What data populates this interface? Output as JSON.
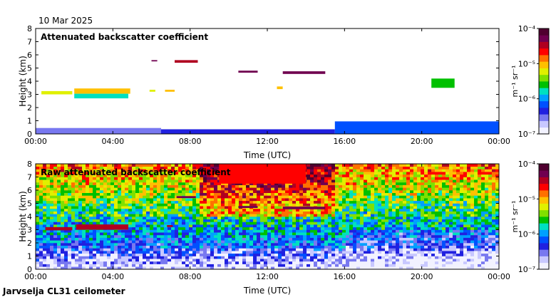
{
  "date": "10 Mar 2025",
  "footer": "Jarvselja CL31 ceilometer",
  "colors": {
    "axis": "#000000",
    "panel_bg": "#ffffff"
  },
  "colormap": [
    "#f2f2ff",
    "#c8c8ff",
    "#7878f0",
    "#2020e0",
    "#0050ff",
    "#00a0ff",
    "#00e0c0",
    "#00c000",
    "#80e000",
    "#e0f000",
    "#ffc000",
    "#ff7000",
    "#ff0000",
    "#b00020",
    "#700050",
    "#500030"
  ],
  "colorbar": {
    "unit_label": "m⁻¹ sr⁻¹",
    "ticks": [
      {
        "exp": -4,
        "label": "10⁻⁴"
      },
      {
        "exp": -5,
        "label": "10⁻⁵"
      },
      {
        "exp": -6,
        "label": "10⁻⁶"
      },
      {
        "exp": -7,
        "label": "10⁻⁷"
      }
    ]
  },
  "chart_data": [
    {
      "type": "heatmap",
      "title": "Attenuated backscatter coefficient",
      "xlabel": "Time (UTC)",
      "ylabel": "Height (km)",
      "xlim": [
        0,
        24
      ],
      "ylim": [
        0,
        8
      ],
      "xticks": [
        {
          "v": 0,
          "label": "00:00"
        },
        {
          "v": 4,
          "label": "04:00"
        },
        {
          "v": 8,
          "label": "08:00"
        },
        {
          "v": 12,
          "label": "12:00"
        },
        {
          "v": 16,
          "label": "16:00"
        },
        {
          "v": 20,
          "label": "20:00"
        },
        {
          "v": 24,
          "label": "00:00"
        }
      ],
      "yticks": [
        0,
        1,
        2,
        3,
        4,
        5,
        6,
        7,
        8
      ],
      "value_scale": "log10",
      "value_range": [
        -7,
        -4
      ],
      "features": [
        {
          "t0": 0.3,
          "t1": 1.9,
          "h0": 3.0,
          "h1": 3.25,
          "level": -5.2
        },
        {
          "t0": 2.0,
          "t1": 4.9,
          "h0": 3.05,
          "h1": 3.45,
          "level": -5.1
        },
        {
          "t0": 2.0,
          "t1": 4.8,
          "h0": 2.7,
          "h1": 3.05,
          "level": -5.8
        },
        {
          "t0": 5.9,
          "t1": 6.2,
          "h0": 3.2,
          "h1": 3.35,
          "level": -5.3
        },
        {
          "t0": 6.7,
          "t1": 7.2,
          "h0": 3.2,
          "h1": 3.35,
          "level": -5.0
        },
        {
          "t0": 6.0,
          "t1": 6.3,
          "h0": 5.5,
          "h1": 5.6,
          "level": -4.3
        },
        {
          "t0": 7.2,
          "t1": 8.4,
          "h0": 5.4,
          "h1": 5.6,
          "level": -4.4
        },
        {
          "t0": 10.5,
          "t1": 11.5,
          "h0": 4.65,
          "h1": 4.8,
          "level": -4.3
        },
        {
          "t0": 12.8,
          "t1": 15.0,
          "h0": 4.55,
          "h1": 4.75,
          "level": -4.3
        },
        {
          "t0": 12.5,
          "t1": 12.8,
          "h0": 3.4,
          "h1": 3.6,
          "level": -5.0
        },
        {
          "t0": 20.5,
          "t1": 21.7,
          "h0": 3.5,
          "h1": 4.2,
          "level": -5.6
        },
        {
          "t0": 0,
          "t1": 6.5,
          "h0": 0.0,
          "h1": 0.45,
          "level": -6.6
        },
        {
          "t0": 6.5,
          "t1": 15.5,
          "h0": 0.0,
          "h1": 0.35,
          "level": -6.4
        },
        {
          "t0": 15.5,
          "t1": 24,
          "h0": 0.0,
          "h1": 0.95,
          "level": -6.2
        }
      ]
    },
    {
      "type": "heatmap",
      "title": "Raw attenuated backscatter coefficient",
      "xlabel": "Time (UTC)",
      "ylabel": "Height (km)",
      "xlim": [
        0,
        24
      ],
      "ylim": [
        0,
        8
      ],
      "xticks": [
        {
          "v": 0,
          "label": "00:00"
        },
        {
          "v": 4,
          "label": "04:00"
        },
        {
          "v": 8,
          "label": "08:00"
        },
        {
          "v": 12,
          "label": "12:00"
        },
        {
          "v": 16,
          "label": "16:00"
        },
        {
          "v": 20,
          "label": "20:00"
        },
        {
          "v": 24,
          "label": "00:00"
        }
      ],
      "yticks": [
        0,
        1,
        2,
        3,
        4,
        5,
        6,
        7,
        8
      ],
      "value_scale": "log10",
      "value_range": [
        -7,
        -4
      ],
      "features": [
        {
          "t0": 0.5,
          "t1": 1.9,
          "h0": 2.95,
          "h1": 3.2,
          "level": -4.4
        },
        {
          "t0": 2.1,
          "t1": 4.8,
          "h0": 3.0,
          "h1": 3.4,
          "level": -4.5
        },
        {
          "t0": 6.8,
          "t1": 7.1,
          "h0": 3.2,
          "h1": 3.35,
          "level": -4.4
        },
        {
          "t0": 7.3,
          "t1": 8.3,
          "h0": 5.4,
          "h1": 5.55,
          "level": -4.3
        },
        {
          "t0": 10.5,
          "t1": 11.5,
          "h0": 4.65,
          "h1": 4.8,
          "level": -4.3
        },
        {
          "t0": 12.8,
          "t1": 15.0,
          "h0": 4.55,
          "h1": 4.75,
          "level": -4.3
        },
        {
          "t0": 9.5,
          "t1": 14.0,
          "h0": 6.5,
          "h1": 8.0,
          "level": -4.7
        }
      ]
    }
  ]
}
